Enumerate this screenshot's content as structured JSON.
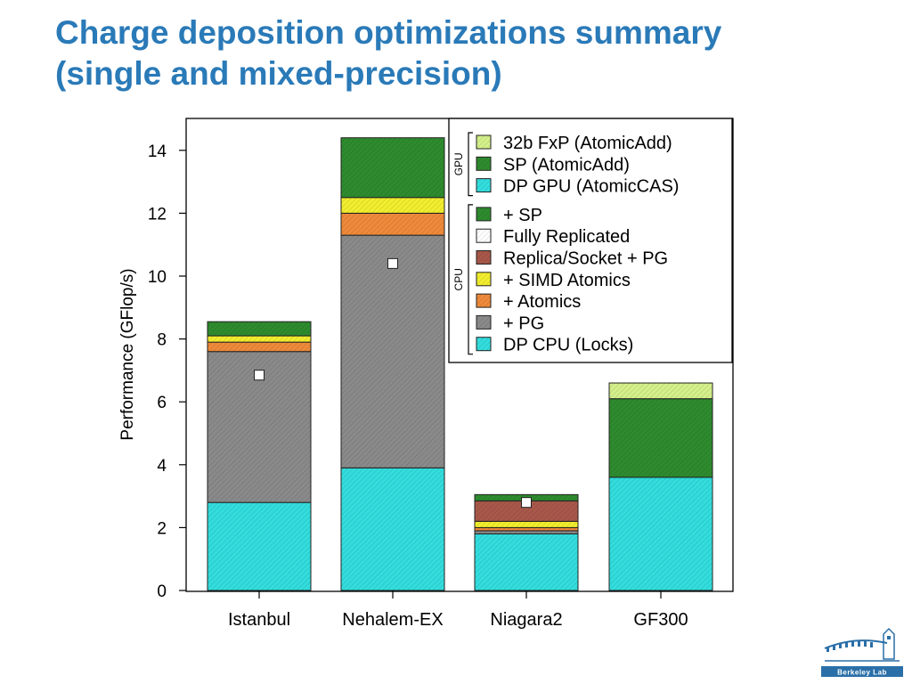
{
  "slide": {
    "title_line1": "Charge deposition optimizations summary",
    "title_line2": "(single and mixed-precision)",
    "logo_text": "Berkeley Lab"
  },
  "chart_data": {
    "type": "bar",
    "stacked": true,
    "categories": [
      "Istanbul",
      "Nehalem-EX",
      "Niagara2",
      "GF300"
    ],
    "ylabel": "Performance (GFlop/s)",
    "xlabel": "",
    "ylim": [
      0,
      15
    ],
    "yticks": [
      0,
      2,
      4,
      6,
      8,
      10,
      12,
      14
    ],
    "legend_position": "top-right",
    "legend_groups": [
      {
        "label": "GPU",
        "entries": [
          {
            "name": "32b FxP (AtomicAdd)",
            "color": "#d4f08a"
          },
          {
            "name": "SP (AtomicAdd)",
            "color": "#2e8b2e"
          },
          {
            "name": "DP GPU (AtomicCAS)",
            "color": "#33dddd"
          }
        ]
      },
      {
        "label": "CPU",
        "entries": [
          {
            "name": "+ SP",
            "color": "#2e8b2e"
          },
          {
            "name": "Fully Replicated",
            "color": "#ffffff"
          },
          {
            "name": "Replica/Socket + PG",
            "color": "#a8584a"
          },
          {
            "name": "+ SIMD Atomics",
            "color": "#f2ee2e"
          },
          {
            "name": "+ Atomics",
            "color": "#ee8a3a"
          },
          {
            "name": "+ PG",
            "color": "#8a8a8a"
          },
          {
            "name": "DP CPU (Locks)",
            "color": "#33dddd"
          }
        ]
      }
    ],
    "bars": [
      {
        "category": "Istanbul",
        "segments": [
          {
            "series": "DP CPU (Locks)",
            "bottom": 0,
            "top": 2.8,
            "color": "#33dddd"
          },
          {
            "series": "+ PG",
            "bottom": 2.8,
            "top": 7.6,
            "color": "#8a8a8a"
          },
          {
            "series": "+ Atomics",
            "bottom": 7.6,
            "top": 7.9,
            "color": "#ee8a3a"
          },
          {
            "series": "+ SIMD Atomics",
            "bottom": 7.9,
            "top": 8.1,
            "color": "#f2ee2e"
          },
          {
            "series": "+ SP",
            "bottom": 8.1,
            "top": 8.55,
            "color": "#2e8b2e"
          }
        ],
        "fully_replicated": 6.85
      },
      {
        "category": "Nehalem-EX",
        "segments": [
          {
            "series": "DP CPU (Locks)",
            "bottom": 0,
            "top": 3.9,
            "color": "#33dddd"
          },
          {
            "series": "+ PG",
            "bottom": 3.9,
            "top": 11.3,
            "color": "#8a8a8a"
          },
          {
            "series": "+ Atomics",
            "bottom": 11.3,
            "top": 12.0,
            "color": "#ee8a3a"
          },
          {
            "series": "+ SIMD Atomics",
            "bottom": 12.0,
            "top": 12.5,
            "color": "#f2ee2e"
          },
          {
            "series": "+ SP",
            "bottom": 12.5,
            "top": 14.4,
            "color": "#2e8b2e"
          }
        ],
        "fully_replicated": 10.4
      },
      {
        "category": "Niagara2",
        "segments": [
          {
            "series": "DP CPU (Locks)",
            "bottom": 0,
            "top": 1.8,
            "color": "#33dddd"
          },
          {
            "series": "+ PG",
            "bottom": 1.8,
            "top": 1.9,
            "color": "#8a8a8a"
          },
          {
            "series": "+ Atomics",
            "bottom": 1.9,
            "top": 2.0,
            "color": "#ee8a3a"
          },
          {
            "series": "+ SIMD Atomics",
            "bottom": 2.0,
            "top": 2.2,
            "color": "#f2ee2e"
          },
          {
            "series": "Replica/Socket + PG",
            "bottom": 2.2,
            "top": 2.85,
            "color": "#a8584a"
          },
          {
            "series": "+ SP",
            "bottom": 2.85,
            "top": 3.05,
            "color": "#2e8b2e"
          }
        ],
        "fully_replicated": 2.8
      },
      {
        "category": "GF300",
        "segments": [
          {
            "series": "DP GPU (AtomicCAS)",
            "bottom": 0,
            "top": 3.6,
            "color": "#33dddd"
          },
          {
            "series": "SP (AtomicAdd)",
            "bottom": 3.6,
            "top": 6.1,
            "color": "#2e8b2e"
          },
          {
            "series": "32b FxP (AtomicAdd)",
            "bottom": 6.1,
            "top": 6.6,
            "color": "#d4f08a"
          }
        ],
        "fully_replicated": null
      }
    ]
  }
}
